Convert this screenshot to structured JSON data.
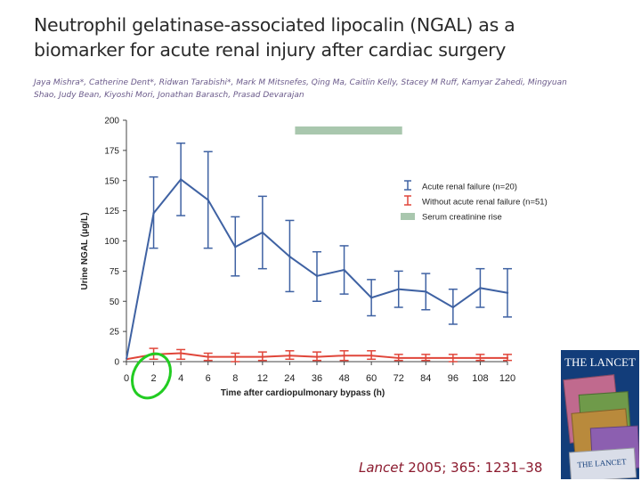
{
  "slide": {
    "title": "Neutrophil gelatinase-associated lipocalin (NGAL) as a biomarker for acute renal injury after cardiac surgery",
    "authors": "Jaya Mishra*, Catherine Dent*, Ridwan Tarabishi*, Mark M Mitsnefes, Qing Ma, Caitlin Kelly, Stacey M Ruff, Kamyar Zahedi, Mingyuan Shao, Judy Bean, Kiyoshi Mori, Jonathan Barasch, Prasad Devarajan",
    "citation_journal": "Lancet",
    "citation_ref": " 2005; 365: 1231–38",
    "journal_cover": {
      "masthead": "THE LANCET",
      "bottom_masthead": "THE LANCET",
      "background": "#123d7a"
    },
    "highlight_ellipse_color": "#22cc22"
  },
  "chart_data": {
    "type": "line",
    "xlabel": "Time after cardiopulmonary bypass (h)",
    "ylabel": "Urine NGAL (μg/L)",
    "ylim": [
      0,
      200
    ],
    "yticks": [
      0,
      25,
      50,
      75,
      100,
      125,
      150,
      175,
      200
    ],
    "x": [
      "0",
      "2",
      "4",
      "6",
      "8",
      "12",
      "24",
      "36",
      "48",
      "60",
      "72",
      "84",
      "96",
      "108",
      "120"
    ],
    "legend_position": "top-right",
    "grid": false,
    "series": [
      {
        "name": "Acute renal failure (n=20)",
        "color": "#3f62a3",
        "values": [
          2,
          123,
          151,
          134,
          95,
          107,
          87,
          71,
          76,
          53,
          60,
          58,
          45,
          61,
          57
        ],
        "err_low": [
          2,
          94,
          121,
          94,
          71,
          77,
          58,
          50,
          56,
          38,
          45,
          43,
          31,
          45,
          37
        ],
        "err_high": [
          2,
          153,
          181,
          174,
          120,
          137,
          117,
          91,
          96,
          68,
          75,
          73,
          60,
          77,
          77
        ]
      },
      {
        "name": "Without acute renal failure (n=51)",
        "color": "#e0463a",
        "values": [
          2,
          6,
          7,
          4,
          4,
          4,
          5,
          4,
          5,
          5,
          3,
          3,
          3,
          3,
          3
        ],
        "err_low": [
          2,
          2,
          2,
          1,
          0,
          1,
          2,
          1,
          1,
          2,
          1,
          1,
          0,
          1,
          1
        ],
        "err_high": [
          2,
          11,
          10,
          7,
          7,
          8,
          9,
          8,
          9,
          9,
          6,
          6,
          6,
          6,
          6
        ]
      }
    ],
    "legend_entries": [
      {
        "name": "Acute renal failure (n=20)",
        "kind": "errorbar",
        "color": "#3f62a3"
      },
      {
        "name": "Without acute renal failure (n=51)",
        "kind": "errorbar",
        "color": "#e0463a"
      },
      {
        "name": "Serum creatinine rise",
        "kind": "band",
        "color": "#a9c7ae"
      }
    ],
    "creatinine_band": {
      "x_start": "24",
      "x_end": "72",
      "color": "#a9c7ae"
    }
  }
}
